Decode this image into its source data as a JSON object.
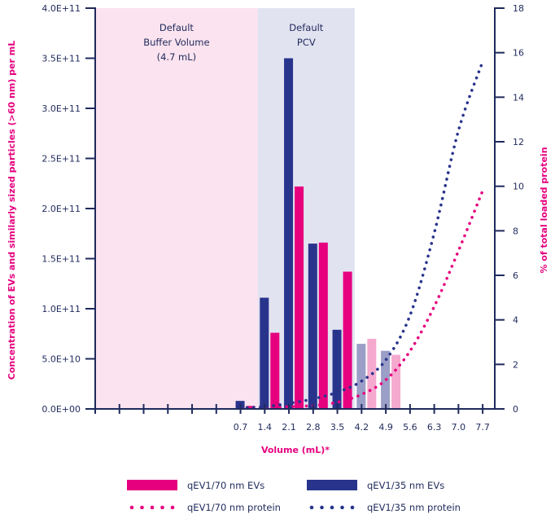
{
  "chart_data": {
    "type": "bar",
    "xlabel": "Volume (mL)*",
    "ylabel_left": "Concentration of EVs and similarly sized particles (>60 nm) per mL",
    "ylabel_right": "% of total loaded protein",
    "left_axis": {
      "min": 0,
      "max": 400000000000.0,
      "ticks": [
        0,
        50000000000.0,
        100000000000.0,
        150000000000.0,
        200000000000.0,
        250000000000.0,
        300000000000.0,
        350000000000.0,
        400000000000.0
      ],
      "tick_labels": [
        "0.0E+00",
        "5.0E+10",
        "1.0E+11",
        "1.5E+11",
        "2.0E+11",
        "2.5E+11",
        "3.0E+11",
        "3.5E+11",
        "4.0E+11"
      ]
    },
    "right_axis": {
      "min": 0,
      "max": 18,
      "ticks": [
        0,
        2,
        4,
        6,
        8,
        10,
        12,
        14,
        16,
        18
      ],
      "tick_labels": [
        "0",
        "2",
        "4",
        "6",
        "8",
        "10",
        "12",
        "14",
        "16",
        "18"
      ]
    },
    "x_axis": {
      "min": -3.5,
      "max": 8.05,
      "minor_ticks": [
        -3.5,
        -2.8,
        -2.1,
        -1.4,
        -0.7,
        0,
        0.7,
        1.4,
        2.1,
        2.8,
        3.5,
        4.2,
        4.9,
        5.6,
        6.3,
        7.0,
        7.7
      ],
      "labeled_ticks": [
        0.7,
        1.4,
        2.1,
        2.8,
        3.5,
        4.2,
        4.9,
        5.6,
        6.3,
        7.0,
        7.7
      ],
      "tick_labels": [
        "0.7",
        "1.4",
        "2.1",
        "2.8",
        "3.5",
        "4.2",
        "4.9",
        "5.6",
        "6.3",
        "7.0",
        "7.7"
      ]
    },
    "regions": [
      {
        "label_lines": [
          "Default",
          "Buffer Volume",
          "(4.7 mL)"
        ],
        "from": -3.5,
        "to": 1.2,
        "color": "#fbe3ef"
      },
      {
        "label_lines": [
          "Default",
          "PCV"
        ],
        "from": 1.2,
        "to": 4.0,
        "color": "#e2e3f1"
      }
    ],
    "series": [
      {
        "name": "qEV1/70 nm EVs",
        "kind": "bar",
        "color": "#e6007e",
        "light_color": "#f5a9cf",
        "light_from_index": 5,
        "x": [
          0.7,
          1.4,
          2.1,
          2.8,
          3.5,
          4.2,
          4.9
        ],
        "values": [
          3000000000.0,
          76000000000.0,
          222000000000.0,
          166000000000.0,
          137000000000.0,
          70000000000.0,
          54000000000.0
        ]
      },
      {
        "name": "qEV1/35 nm EVs",
        "kind": "bar",
        "color": "#28348c",
        "light_color": "#9b9ec6",
        "light_from_index": 5,
        "x": [
          0.7,
          1.4,
          2.1,
          2.8,
          3.5,
          4.2,
          4.9
        ],
        "values": [
          8000000000.0,
          111000000000.0,
          350000000000.0,
          165000000000.0,
          79000000000.0,
          65000000000.0,
          58000000000.0
        ]
      },
      {
        "name": "qEV1/70 nm protein",
        "kind": "dotted-line",
        "color": "#e6007e",
        "x": [
          0.7,
          1.4,
          2.1,
          2.8,
          3.5,
          4.2,
          4.9,
          5.6,
          6.3,
          7.0,
          7.7
        ],
        "values": [
          0.05,
          0.05,
          0.1,
          0.15,
          0.3,
          0.65,
          1.3,
          2.6,
          4.6,
          7.1,
          9.8
        ]
      },
      {
        "name": "qEV1/35 nm protein",
        "kind": "dotted-line",
        "color": "#28348c",
        "x": [
          0.7,
          1.4,
          2.1,
          2.8,
          3.5,
          4.2,
          4.9,
          5.6,
          6.3,
          7.0,
          7.7
        ],
        "values": [
          0.05,
          0.1,
          0.25,
          0.45,
          0.75,
          1.25,
          2.2,
          4.2,
          7.9,
          12.5,
          15.6
        ]
      }
    ],
    "legend": [
      {
        "label": "qEV1/70 nm EVs",
        "kind": "bar",
        "color": "#e6007e"
      },
      {
        "label": "qEV1/35 nm EVs",
        "kind": "bar",
        "color": "#28348c"
      },
      {
        "label": "qEV1/70 nm protein",
        "kind": "dots",
        "color": "#e6007e"
      },
      {
        "label": "qEV1/35 nm protein",
        "kind": "dots",
        "color": "#28348c"
      }
    ],
    "legend_position": "bottom",
    "grid": false,
    "axis_color": "#1f2a5c"
  }
}
